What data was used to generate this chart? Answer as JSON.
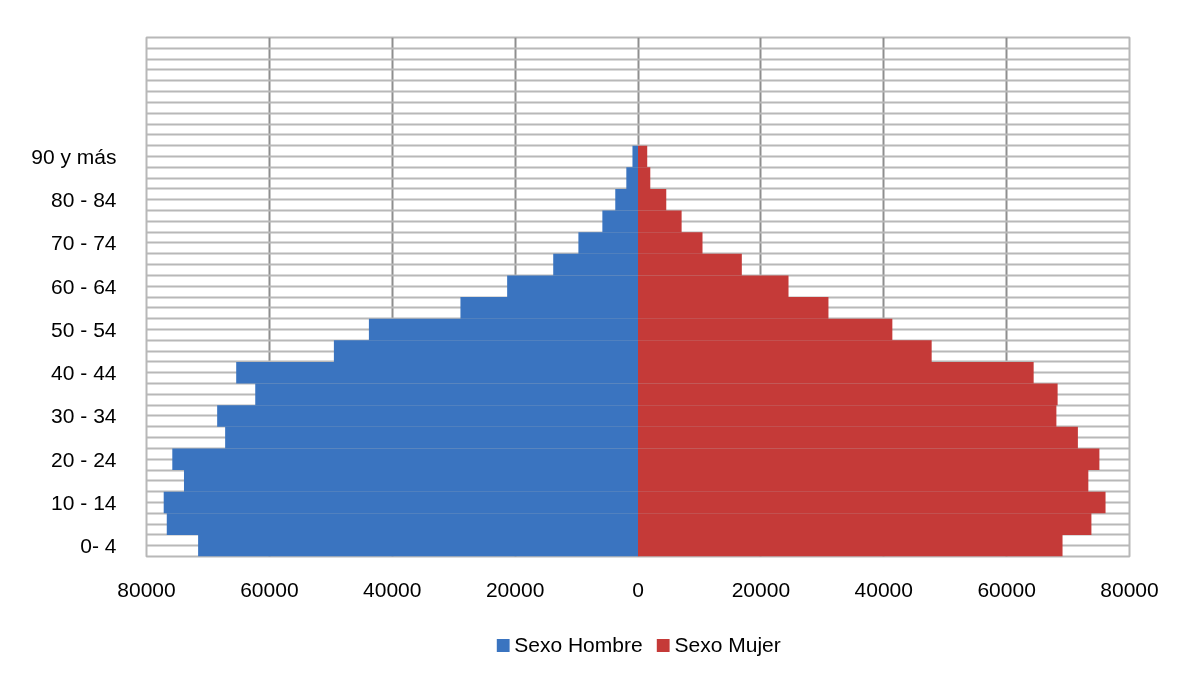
{
  "chart_data": {
    "type": "bar",
    "orientation": "horizontal",
    "stacked": true,
    "categories": [
      null,
      null,
      null,
      null,
      null,
      "90 y más",
      null,
      "80 - 84",
      null,
      "70 - 74",
      null,
      "60 - 64",
      null,
      "50 - 54",
      null,
      "40 - 44",
      null,
      "30 - 34",
      null,
      "20 - 24",
      null,
      "10 - 14",
      null,
      "0- 4"
    ],
    "series": [
      {
        "name": "Sexo Hombre",
        "color": "#3a74c0",
        "values": [
          null,
          null,
          null,
          null,
          null,
          -900,
          -1900,
          -3700,
          -5800,
          -9700,
          -13800,
          -21300,
          -28900,
          -43800,
          -49500,
          -65400,
          -62300,
          -68500,
          -67200,
          -75800,
          -73900,
          -77200,
          -76700,
          -71600
        ]
      },
      {
        "name": "Sexo Mujer",
        "color": "#c53a38",
        "values": [
          null,
          null,
          null,
          null,
          null,
          1500,
          2000,
          4600,
          7100,
          10500,
          16900,
          24500,
          31000,
          41400,
          47800,
          64400,
          68300,
          68100,
          71600,
          75100,
          73300,
          76100,
          73800,
          69100
        ]
      }
    ],
    "xlim": [
      -80000,
      80000
    ],
    "xticks": [
      {
        "value": -80000,
        "label": "80000"
      },
      {
        "value": -60000,
        "label": "60000"
      },
      {
        "value": -40000,
        "label": "40000"
      },
      {
        "value": -20000,
        "label": "20000"
      },
      0,
      20000,
      40000,
      60000,
      80000
    ],
    "grid": true,
    "legend": "bottom"
  }
}
